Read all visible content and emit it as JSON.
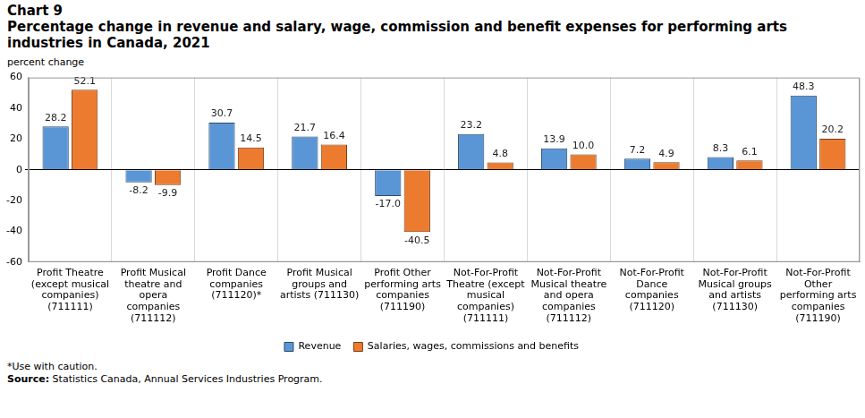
{
  "chart_data": {
    "type": "bar",
    "title": "Chart 9",
    "subtitle": "Percentage change in revenue and salary, wage, commission and benefit expenses for performing arts industries in Canada, 2021",
    "y_label": "percent change",
    "note": "*Use with caution.",
    "source": "Source: Statistics Canada, Annual Services Industries Program.",
    "categories": [
      [
        "Profit Theatre",
        "(except musical",
        "companies)",
        "(711111)"
      ],
      [
        "Profit Musical",
        "theatre and",
        "opera",
        "companies",
        "(711112)"
      ],
      [
        "Profit Dance",
        "companies",
        "(711120)*"
      ],
      [
        "Profit Musical",
        "groups and",
        "artists (711130)"
      ],
      [
        "Profit Other",
        "performing arts",
        "companies",
        "(711190)"
      ],
      [
        "Not-For-Profit",
        "Theatre (except",
        "musical",
        "companies)",
        "(711111)"
      ],
      [
        "Not-For-Profit",
        "Musical theatre",
        "and opera",
        "companies",
        "(711112)"
      ],
      [
        "Not-For-Profit",
        "Dance",
        "companies",
        "(711120)"
      ],
      [
        "Not-For-Profit",
        "Musical groups",
        "and artists",
        "(711130)"
      ],
      [
        "Not-For-Profit",
        "Other",
        "performing arts",
        "companies",
        "(711190)"
      ]
    ],
    "series": [
      {
        "name": "Revenue",
        "color": "#5a96d6",
        "values": [
          28.2,
          -8.2,
          30.7,
          21.7,
          -17.0,
          23.2,
          13.9,
          7.2,
          8.3,
          48.3
        ],
        "value_labels": [
          "28.2",
          "-8.2",
          "30.7",
          "21.7",
          "-17.0",
          "23.2",
          "13.9",
          "7.2",
          "8.3",
          "48.3"
        ]
      },
      {
        "name": "Salaries, wages, commissions and benefits",
        "color": "#ec7a2f",
        "values": [
          52.1,
          -9.9,
          14.5,
          16.4,
          -40.5,
          4.8,
          10.0,
          4.9,
          6.1,
          20.2
        ],
        "value_labels": [
          "52.1",
          "-9.9",
          "14.5",
          "16.4",
          "-40.5",
          "4.8",
          "10.0",
          "4.9",
          "6.1",
          "20.2"
        ]
      }
    ],
    "ylim": [
      -60,
      60
    ],
    "yticks": [
      -60,
      -40,
      -20,
      0,
      20,
      40,
      60
    ],
    "grid": true,
    "legend": "bottom",
    "data_labels": true
  }
}
